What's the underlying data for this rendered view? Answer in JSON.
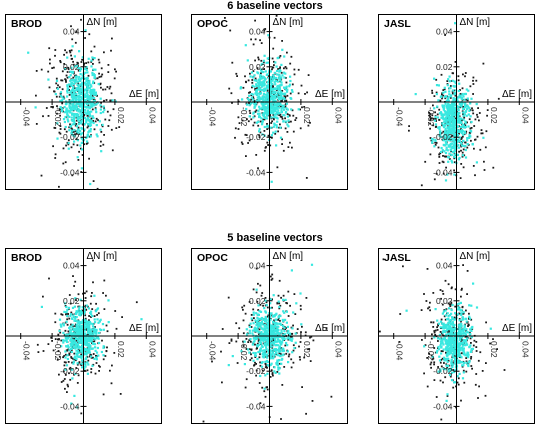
{
  "chart_data": [
    {
      "type": "scatter",
      "title": "6 baseline vectors",
      "group": "top",
      "panels": [
        {
          "name": "BROD",
          "xlabel": "ΔE [m]",
          "ylabel": "ΔN [m]",
          "xlim": [
            -0.05,
            0.05
          ],
          "ylim": [
            -0.05,
            0.05
          ],
          "yticks": [
            0.04,
            0.02,
            -0.02,
            -0.04
          ],
          "ytick_labels": [
            "0.04",
            "0.02",
            "-0.02",
            "-0.04"
          ],
          "xticks": [
            -0.04,
            -0.02,
            0.02,
            0.04
          ],
          "xtick_labels": [
            "-0.04",
            "-0.02",
            "0.02",
            "0.04"
          ],
          "series": [
            {
              "color": "#1a1a1a",
              "center": [
                -0.003,
                0.002
              ],
              "spread": [
                0.01,
                0.018
              ],
              "n": 320
            },
            {
              "color": "#38e8e0",
              "center": [
                -0.002,
                0.0
              ],
              "spread": [
                0.006,
                0.01
              ],
              "n": 520
            }
          ]
        },
        {
          "name": "OPOC",
          "xlabel": "ΔE [m]",
          "ylabel": "ΔN [m]",
          "xlim": [
            -0.05,
            0.05
          ],
          "ylim": [
            -0.05,
            0.05
          ],
          "yticks": [
            0.04,
            0.02,
            -0.02,
            -0.04
          ],
          "ytick_labels": [
            "0.04",
            "0.02",
            "-0.02",
            "-0.04"
          ],
          "xticks": [
            -0.04,
            -0.02,
            0.02,
            0.04
          ],
          "xtick_labels": [
            "-0.04",
            "-0.02",
            "0.02",
            "0.04"
          ],
          "series": [
            {
              "color": "#1a1a1a",
              "center": [
                0.0,
                0.003
              ],
              "spread": [
                0.01,
                0.015
              ],
              "n": 300
            },
            {
              "color": "#38e8e0",
              "center": [
                0.0,
                0.002
              ],
              "spread": [
                0.006,
                0.009
              ],
              "n": 500
            }
          ]
        },
        {
          "name": "JASL",
          "xlabel": "ΔE [m]",
          "ylabel": "ΔN [m]",
          "xlim": [
            -0.05,
            0.05
          ],
          "ylim": [
            -0.05,
            0.05
          ],
          "yticks": [
            0.04,
            0.02,
            -0.02,
            -0.04
          ],
          "ytick_labels": [
            "0.04",
            "0.02",
            "-0.02",
            "-0.04"
          ],
          "xticks": [
            -0.04,
            -0.02,
            0.02,
            0.04
          ],
          "xtick_labels": [
            "-0.04",
            "-0.02",
            "0.02",
            "0.04"
          ],
          "series": [
            {
              "color": "#1a1a1a",
              "center": [
                -0.001,
                -0.012
              ],
              "spread": [
                0.008,
                0.014
              ],
              "n": 300
            },
            {
              "color": "#38e8e0",
              "center": [
                -0.002,
                -0.011
              ],
              "spread": [
                0.005,
                0.01
              ],
              "n": 520
            }
          ]
        }
      ]
    },
    {
      "type": "scatter",
      "title": "5 baseline vectors",
      "group": "bottom",
      "panels": [
        {
          "name": "BROD",
          "xlabel": "ΔE [m]",
          "ylabel": "ΔN [m]",
          "xlim": [
            -0.05,
            0.05
          ],
          "ylim": [
            -0.05,
            0.05
          ],
          "yticks": [
            0.04,
            0.02,
            -0.02,
            -0.04
          ],
          "ytick_labels": [
            "0.04",
            "0.02",
            "-0.02",
            "-0.04"
          ],
          "xticks": [
            -0.04,
            -0.02,
            0.02,
            0.04
          ],
          "xtick_labels": [
            "-0.04",
            "-0.02",
            "0.02",
            "0.04"
          ],
          "series": [
            {
              "color": "#1a1a1a",
              "center": [
                -0.002,
                0.0
              ],
              "spread": [
                0.009,
                0.013
              ],
              "n": 280
            },
            {
              "color": "#38e8e0",
              "center": [
                -0.001,
                0.0
              ],
              "spread": [
                0.006,
                0.008
              ],
              "n": 480
            }
          ]
        },
        {
          "name": "OPOC",
          "xlabel": "ΔE [m]",
          "ylabel": "ΔN [m]",
          "xlim": [
            -0.05,
            0.05
          ],
          "ylim": [
            -0.05,
            0.05
          ],
          "yticks": [
            0.04,
            0.02,
            -0.02,
            -0.04
          ],
          "ytick_labels": [
            "0.04",
            "0.02",
            "-0.02",
            "-0.04"
          ],
          "xticks": [
            -0.04,
            -0.02,
            0.02,
            0.04
          ],
          "xtick_labels": [
            "-0.04",
            "-0.02",
            "0.02",
            "0.04"
          ],
          "series": [
            {
              "color": "#1a1a1a",
              "center": [
                0.001,
                0.0
              ],
              "spread": [
                0.011,
                0.014
              ],
              "n": 300
            },
            {
              "color": "#38e8e0",
              "center": [
                0.0,
                0.0
              ],
              "spread": [
                0.006,
                0.008
              ],
              "n": 480
            }
          ]
        },
        {
          "name": "JASL",
          "xlabel": "ΔE [m]",
          "ylabel": "ΔN [m]",
          "xlim": [
            -0.05,
            0.05
          ],
          "ylim": [
            -0.05,
            0.05
          ],
          "yticks": [
            0.04,
            0.02,
            -0.02,
            -0.04
          ],
          "ytick_labels": [
            "0.04",
            "0.02",
            "-0.02",
            "-0.04"
          ],
          "xticks": [
            -0.04,
            -0.02,
            0.02,
            0.04
          ],
          "xtick_labels": [
            "-0.04",
            "-0.02",
            "0.02",
            "0.04"
          ],
          "series": [
            {
              "color": "#1a1a1a",
              "center": [
                -0.001,
                -0.004
              ],
              "spread": [
                0.009,
                0.014
              ],
              "n": 280
            },
            {
              "color": "#38e8e0",
              "center": [
                -0.001,
                -0.003
              ],
              "spread": [
                0.005,
                0.008
              ],
              "n": 480
            }
          ]
        }
      ]
    }
  ]
}
